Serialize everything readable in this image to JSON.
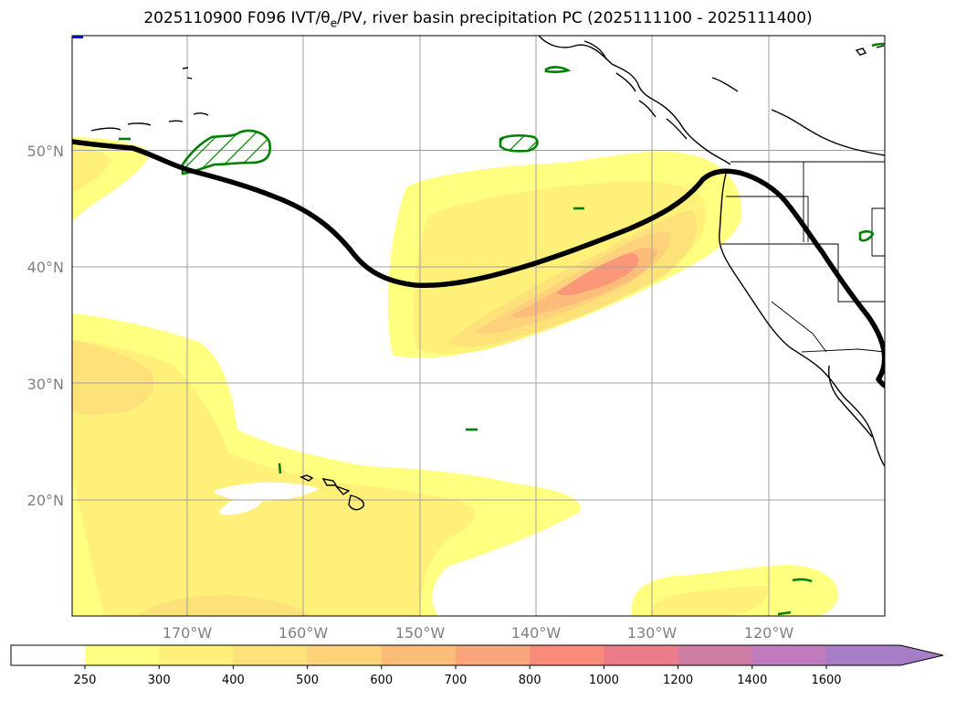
{
  "title": {
    "prefix": "2025110900 F096 IVT/",
    "theta": "θ",
    "theta_sub": "e",
    "suffix": "/PV, river basin precipitation PC (2025111100 - 2025111400)"
  },
  "map": {
    "lat_labels": [
      "50°N",
      "40°N",
      "30°N",
      "20°N"
    ],
    "lon_labels": [
      "170°W",
      "160°W",
      "150°W",
      "140°W",
      "130°W",
      "120°W"
    ],
    "lat_values": [
      50,
      40,
      30,
      20
    ],
    "lon_values": [
      -170,
      -160,
      -150,
      -140,
      -130,
      -120
    ],
    "extent": {
      "lon_min": -180,
      "lon_max": -110,
      "lat_min": 10,
      "lat_max": 60
    }
  },
  "colorbar": {
    "tick_labels": [
      "250",
      "300",
      "400",
      "500",
      "600",
      "700",
      "800",
      "1000",
      "1200",
      "1400",
      "1600"
    ],
    "colors": [
      "#ffff80",
      "#fff07a",
      "#fde27a",
      "#fdd27a",
      "#fcbc7a",
      "#fba67a",
      "#f98b7a",
      "#eb7d8a",
      "#d07da4",
      "#c07cbc",
      "#a87dc8"
    ],
    "below_color": "#ffffff",
    "extend": "max"
  },
  "colors": {
    "ivt_fill_1": "#ffff80",
    "ivt_fill_2": "#fff07a",
    "ivt_fill_3": "#fde27a",
    "ivt_fill_4": "#fdd27a",
    "ivt_fill_5": "#fcbc7a",
    "ivt_fill_6": "#fba67a",
    "ivt_fill_7": "#f98b7a",
    "pv_contour": "#000000",
    "precip_outline": "#008000"
  }
}
